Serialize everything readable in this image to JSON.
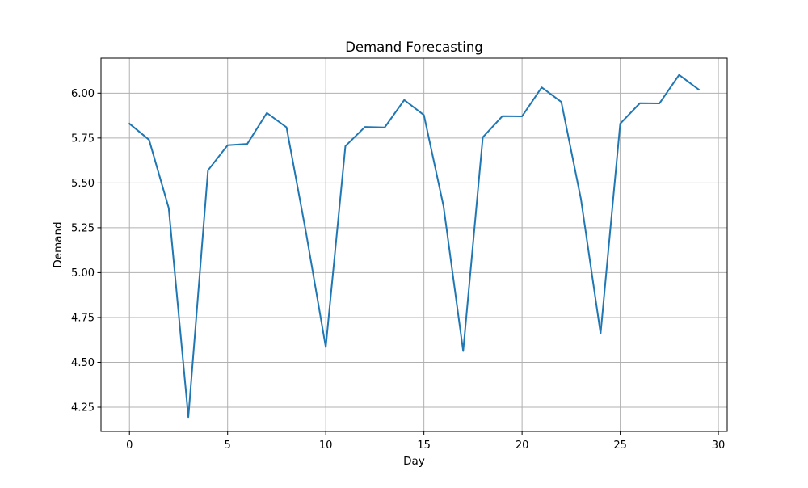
{
  "chart_data": {
    "type": "line",
    "title": "Demand Forecasting",
    "xlabel": "Day",
    "ylabel": "Demand",
    "xlim": [
      -1.45,
      30.45
    ],
    "ylim": [
      4.115,
      6.195
    ],
    "xticks": [
      0,
      5,
      10,
      15,
      20,
      25,
      30
    ],
    "yticks": [
      4.25,
      4.5,
      4.75,
      5.0,
      5.25,
      5.5,
      5.75,
      6.0
    ],
    "ytick_labels": [
      "4.25",
      "4.50",
      "4.75",
      "5.00",
      "5.25",
      "5.50",
      "5.75",
      "6.00"
    ],
    "grid": true,
    "legend": null,
    "series": [
      {
        "color": "#1f77b4",
        "x": [
          0,
          1,
          2,
          3,
          4,
          5,
          6,
          7,
          8,
          9,
          10,
          11,
          12,
          13,
          14,
          15,
          16,
          17,
          18,
          19,
          20,
          21,
          22,
          23,
          24,
          25,
          26,
          27,
          28,
          29
        ],
        "y": [
          5.83,
          5.74,
          5.36,
          4.195,
          5.57,
          5.71,
          5.717,
          5.89,
          5.81,
          5.22,
          4.585,
          5.705,
          5.812,
          5.809,
          5.962,
          5.878,
          5.37,
          4.563,
          5.754,
          5.872,
          5.871,
          6.032,
          5.951,
          5.41,
          4.66,
          5.83,
          5.944,
          5.943,
          6.102,
          6.02
        ]
      }
    ]
  }
}
